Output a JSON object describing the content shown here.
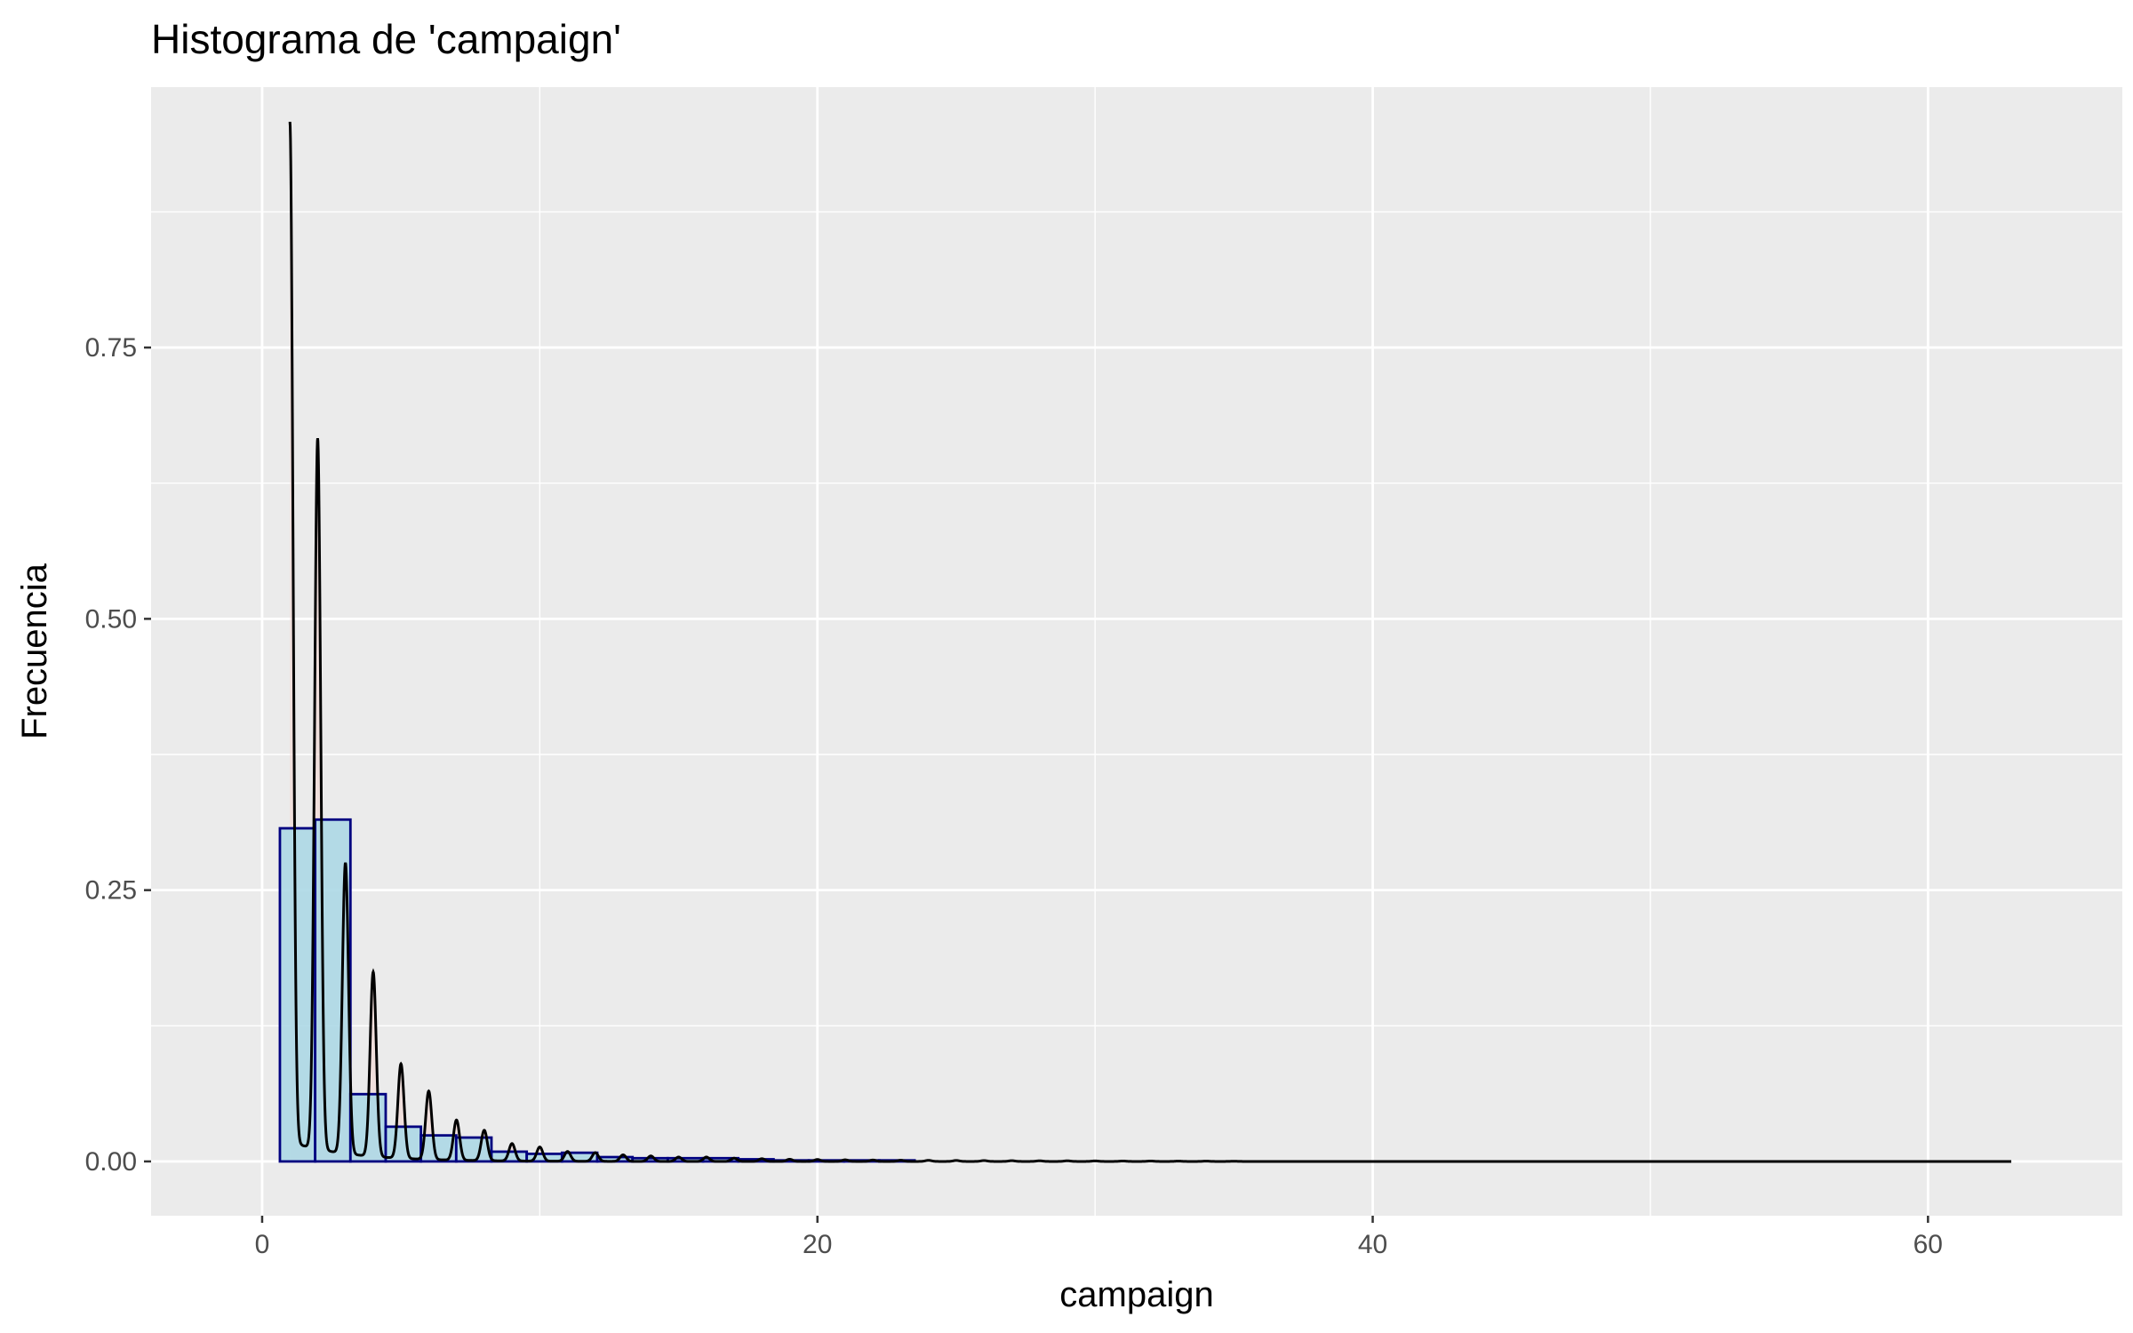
{
  "chart_data": {
    "type": "bar",
    "title": "Histograma de 'campaign'",
    "xlabel": "campaign",
    "ylabel": "Frecuencia",
    "xlim": [
      -4,
      67
    ],
    "ylim": [
      -0.05,
      0.99
    ],
    "x_ticks": [
      0,
      20,
      40,
      60
    ],
    "x_tick_labels": [
      "0",
      "20",
      "40",
      "60"
    ],
    "y_ticks": [
      0,
      0.25,
      0.5,
      0.75
    ],
    "y_tick_labels": [
      "0.00",
      "0.25",
      "0.50",
      "0.75"
    ],
    "grid": true,
    "legend": "none",
    "colors": {
      "panel": "#EBEBEB",
      "grid": "#FFFFFF",
      "bar_fill": "#ADD8E6",
      "bar_outline": "#000080",
      "density_line": "#000000",
      "density_fill": "#F4D5D0"
    },
    "histogram": {
      "bin_width": 1.27,
      "bins": [
        {
          "x0": 0.64,
          "x1": 1.91,
          "value": 0.307
        },
        {
          "x0": 1.91,
          "x1": 3.18,
          "value": 0.315
        },
        {
          "x0": 3.18,
          "x1": 4.45,
          "value": 0.062
        },
        {
          "x0": 4.45,
          "x1": 5.72,
          "value": 0.032
        },
        {
          "x0": 5.72,
          "x1": 6.99,
          "value": 0.024
        },
        {
          "x0": 6.99,
          "x1": 8.26,
          "value": 0.022
        },
        {
          "x0": 8.26,
          "x1": 9.53,
          "value": 0.009
        },
        {
          "x0": 9.53,
          "x1": 10.8,
          "value": 0.007
        },
        {
          "x0": 10.8,
          "x1": 12.07,
          "value": 0.008
        },
        {
          "x0": 12.07,
          "x1": 13.34,
          "value": 0.004
        },
        {
          "x0": 13.34,
          "x1": 14.61,
          "value": 0.003
        },
        {
          "x0": 14.61,
          "x1": 15.88,
          "value": 0.003
        },
        {
          "x0": 15.88,
          "x1": 17.15,
          "value": 0.003
        },
        {
          "x0": 17.15,
          "x1": 18.42,
          "value": 0.002
        },
        {
          "x0": 18.42,
          "x1": 19.69,
          "value": 0.001
        },
        {
          "x0": 19.69,
          "x1": 20.96,
          "value": 0.001
        },
        {
          "x0": 20.96,
          "x1": 22.23,
          "value": 0.001
        },
        {
          "x0": 22.23,
          "x1": 23.5,
          "value": 0.001
        },
        {
          "x0": 23.5,
          "x1": 64.14,
          "value": 0.0
        }
      ]
    },
    "density": {
      "peaks": [
        {
          "x": 1,
          "y": 0.94
        },
        {
          "x": 2,
          "y": 0.655
        },
        {
          "x": 3,
          "y": 0.268
        },
        {
          "x": 4,
          "y": 0.17
        },
        {
          "x": 5,
          "y": 0.087
        },
        {
          "x": 6,
          "y": 0.063
        },
        {
          "x": 7,
          "y": 0.037
        },
        {
          "x": 8,
          "y": 0.028
        },
        {
          "x": 9,
          "y": 0.016
        },
        {
          "x": 10,
          "y": 0.013
        },
        {
          "x": 11,
          "y": 0.009
        },
        {
          "x": 12,
          "y": 0.008
        },
        {
          "x": 13,
          "y": 0.006
        },
        {
          "x": 14,
          "y": 0.005
        },
        {
          "x": 15,
          "y": 0.004
        },
        {
          "x": 16,
          "y": 0.004
        },
        {
          "x": 17,
          "y": 0.003
        },
        {
          "x": 18,
          "y": 0.0025
        },
        {
          "x": 19,
          "y": 0.002
        },
        {
          "x": 20,
          "y": 0.0018
        },
        {
          "x": 21,
          "y": 0.0015
        },
        {
          "x": 22,
          "y": 0.0013
        },
        {
          "x": 23,
          "y": 0.0011
        },
        {
          "x": 24,
          "y": 0.001
        },
        {
          "x": 25,
          "y": 0.0009
        },
        {
          "x": 26,
          "y": 0.0008
        },
        {
          "x": 27,
          "y": 0.0007
        },
        {
          "x": 28,
          "y": 0.0006
        },
        {
          "x": 29,
          "y": 0.0006
        },
        {
          "x": 30,
          "y": 0.0005
        },
        {
          "x": 31,
          "y": 0.0004
        },
        {
          "x": 32,
          "y": 0.0004
        },
        {
          "x": 33,
          "y": 0.0003
        },
        {
          "x": 34,
          "y": 0.0003
        },
        {
          "x": 35,
          "y": 0.0002
        }
      ],
      "valley_min": 0.018,
      "x_range": [
        1,
        63
      ]
    }
  }
}
